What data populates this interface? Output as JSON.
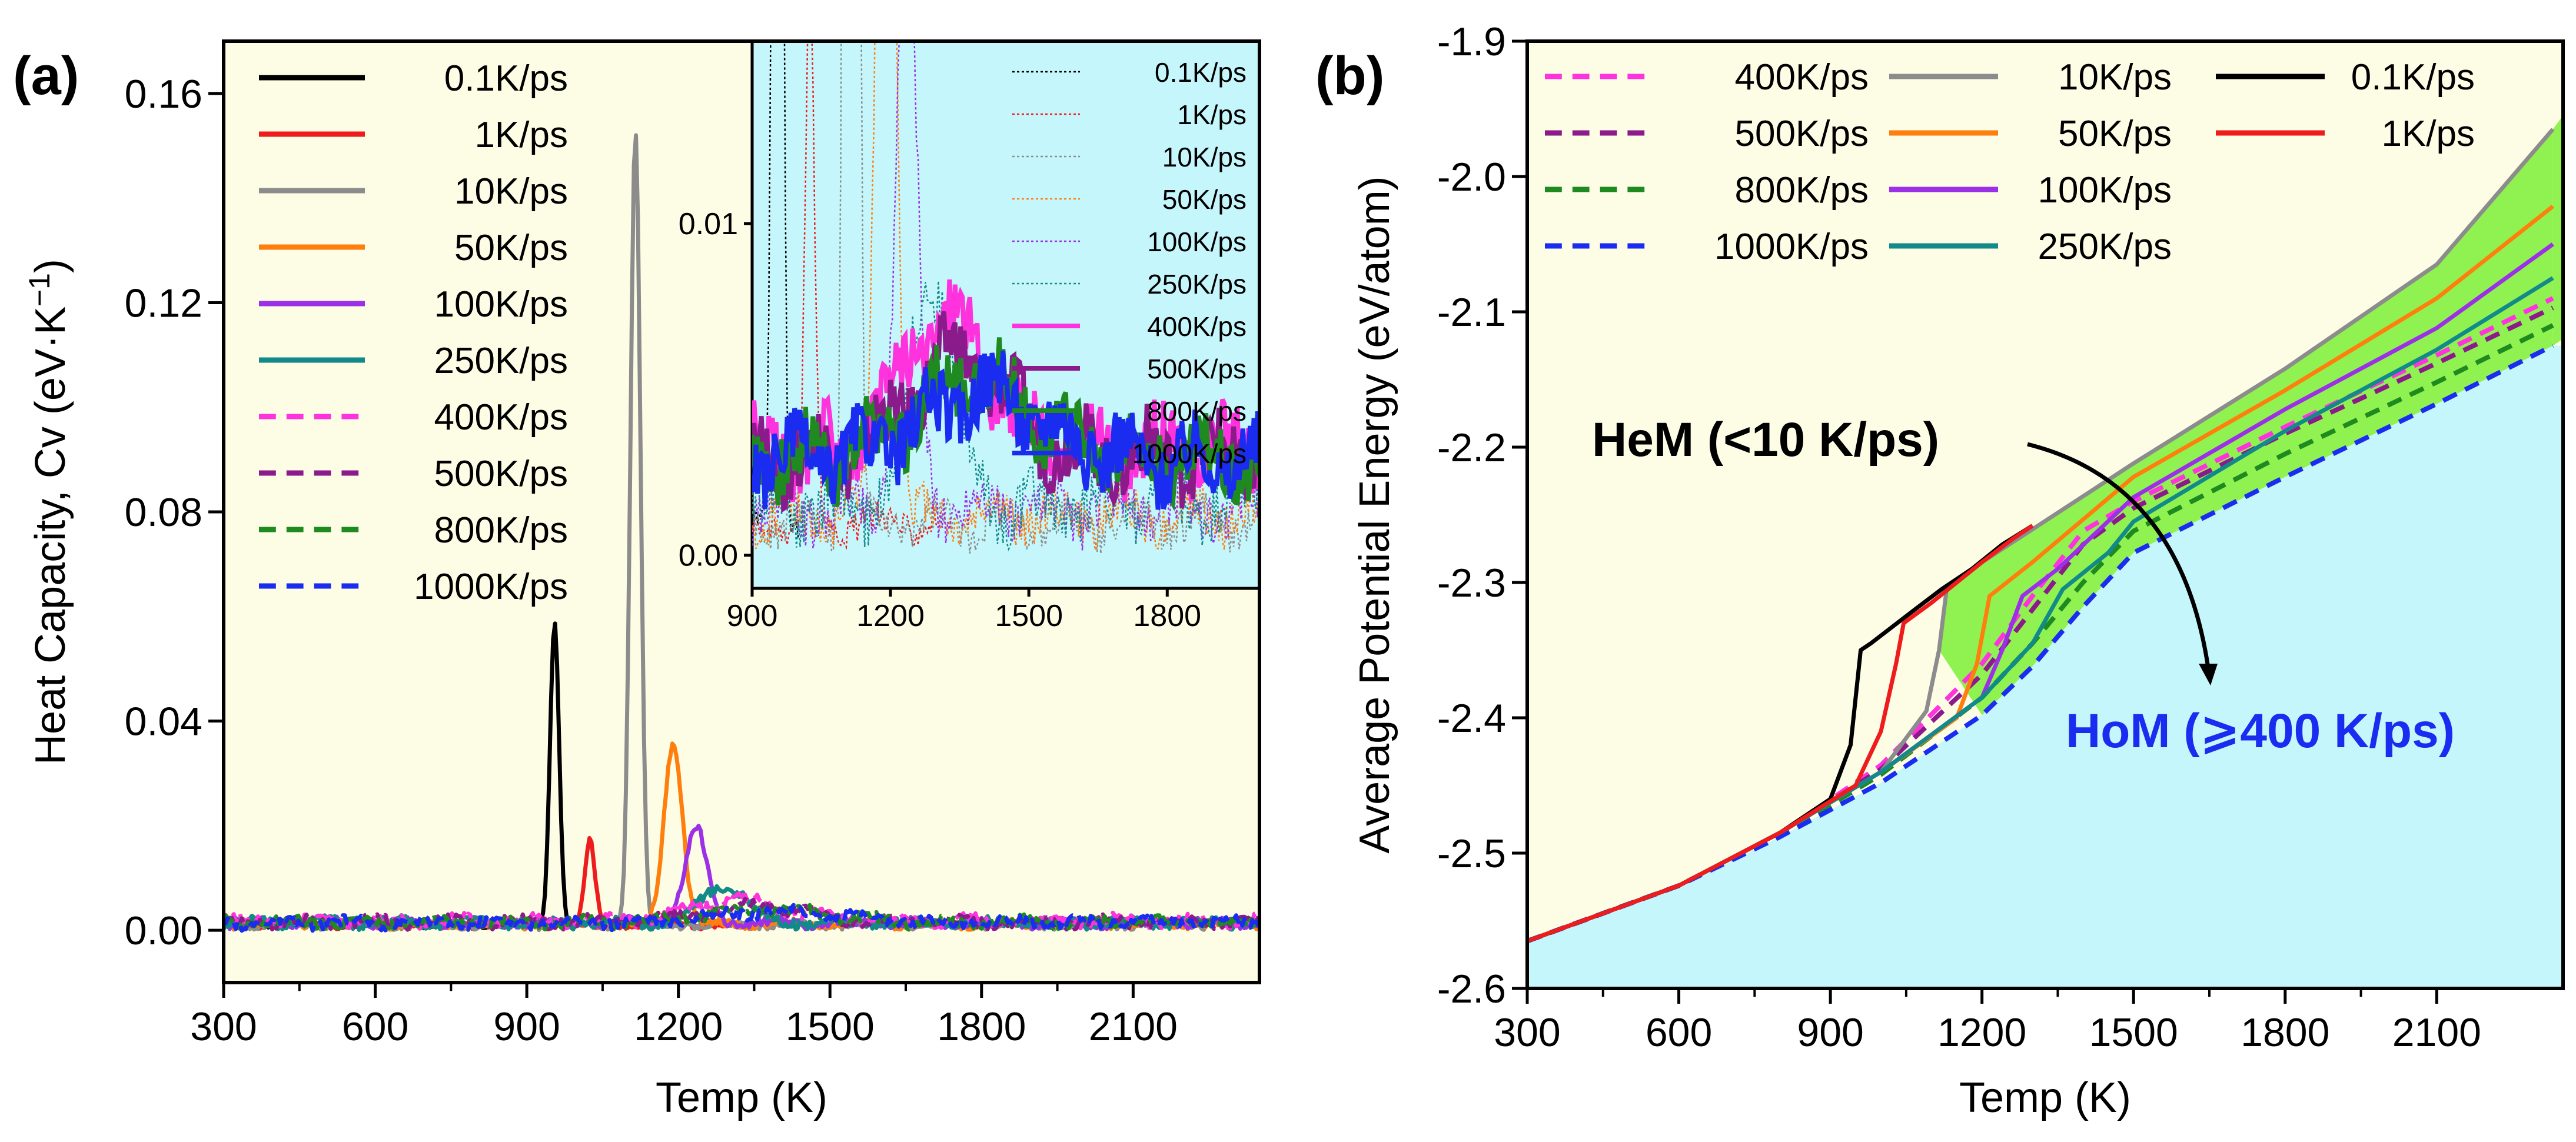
{
  "chart_data": [
    {
      "type": "line",
      "panel_label": "(a)",
      "xlabel": "Temp (K)",
      "ylabel": "Heat Capacity, Cv (eV·K",
      "ylabel_sup": "−1",
      "ylabel_close": ")",
      "xlim": [
        300,
        2350
      ],
      "ylim": [
        -0.01,
        0.17
      ],
      "xticks": [
        300,
        600,
        900,
        1200,
        1500,
        1800,
        2100
      ],
      "xtick_labels": [
        "300",
        "600",
        "900",
        "1200",
        "1500",
        "1800",
        "2100"
      ],
      "yticks": [
        0.0,
        0.04,
        0.08,
        0.12,
        0.16
      ],
      "ytick_labels": [
        "0.00",
        "0.04",
        "0.08",
        "0.12",
        "0.16"
      ],
      "background": "#fdfde6",
      "series": [
        {
          "name": "0.1K/ps",
          "color": "#000000",
          "dash": "solid",
          "baseline": 0.001,
          "noise": 0.0004,
          "x_end": 1000,
          "peaks": [
            [
              955,
              0.058,
              9
            ]
          ]
        },
        {
          "name": "1K/ps",
          "color": "#ee1c1c",
          "dash": "solid",
          "baseline": 0.001,
          "noise": 0.0005,
          "x_end": 1300,
          "peaks": [
            [
              1025,
              0.016,
              10
            ]
          ]
        },
        {
          "name": "10K/ps",
          "color": "#8c8c8c",
          "dash": "solid",
          "baseline": 0.001,
          "noise": 0.0006,
          "x_end": 2350,
          "peaks": [
            [
              1115,
              0.152,
              10
            ]
          ]
        },
        {
          "name": "50K/ps",
          "color": "#ff7f0e",
          "dash": "solid",
          "baseline": 0.0012,
          "noise": 0.0007,
          "x_end": 2350,
          "peaks": [
            [
              1190,
              0.035,
              18
            ]
          ]
        },
        {
          "name": "100K/ps",
          "color": "#9b30e6",
          "dash": "solid",
          "baseline": 0.0014,
          "noise": 0.0008,
          "x_end": 2350,
          "peaks": [
            [
              1235,
              0.018,
              22
            ]
          ]
        },
        {
          "name": "250K/ps",
          "color": "#138a8a",
          "dash": "solid",
          "baseline": 0.0015,
          "noise": 0.0009,
          "x_end": 2350,
          "peaks": [
            [
              1290,
              0.007,
              45
            ]
          ]
        },
        {
          "name": "400K/ps",
          "color": "#ff33dd",
          "dash": "dash",
          "baseline": 0.0018,
          "noise": 0.001,
          "x_end": 2350,
          "peaks": [
            [
              1320,
              0.004,
              90
            ]
          ]
        },
        {
          "name": "500K/ps",
          "color": "#8b1a8b",
          "dash": "dash",
          "baseline": 0.0016,
          "noise": 0.001,
          "x_end": 2350,
          "peaks": [
            [
              1350,
              0.003,
              100
            ]
          ]
        },
        {
          "name": "800K/ps",
          "color": "#1f8a1f",
          "dash": "dash",
          "baseline": 0.0015,
          "noise": 0.001,
          "x_end": 2350,
          "peaks": [
            [
              1380,
              0.0025,
              120
            ]
          ]
        },
        {
          "name": "1000K/ps",
          "color": "#1a2cf0",
          "dash": "dash",
          "baseline": 0.0015,
          "noise": 0.001,
          "x_end": 2350,
          "peaks": [
            [
              1400,
              0.002,
              130
            ]
          ]
        }
      ],
      "inset": {
        "xlim": [
          900,
          2000
        ],
        "ylim": [
          -0.001,
          0.0155
        ],
        "xticks": [
          900,
          1200,
          1500,
          1800
        ],
        "xtick_labels": [
          "900",
          "1200",
          "1500",
          "1800"
        ],
        "yticks": [
          0.0,
          0.01
        ],
        "ytick_labels": [
          "0.00",
          "0.01"
        ],
        "background": "#c5f6fb",
        "legend": [
          "0.1K/ps",
          "1K/ps",
          "10K/ps",
          "50K/ps",
          "100K/ps",
          "250K/ps",
          "400K/ps",
          "500K/ps",
          "800K/ps",
          "1000K/ps"
        ]
      }
    },
    {
      "type": "line",
      "panel_label": "(b)",
      "xlabel": "Temp (K)",
      "ylabel": "Average Potential Energy (eV/atom)",
      "xlim": [
        300,
        2350
      ],
      "ylim": [
        -2.6,
        -1.9
      ],
      "xticks": [
        300,
        600,
        900,
        1200,
        1500,
        1800,
        2100
      ],
      "xtick_labels": [
        "300",
        "600",
        "900",
        "1200",
        "1500",
        "1800",
        "2100"
      ],
      "yticks": [
        -2.6,
        -2.5,
        -2.4,
        -2.3,
        -2.2,
        -2.1,
        -2.0,
        -1.9
      ],
      "ytick_labels": [
        "-2.6",
        "-2.5",
        "-2.4",
        "-2.3",
        "-2.2",
        "-2.1",
        "-2.0",
        "-1.9"
      ],
      "region_colors": {
        "upper": "#fdfde6",
        "lower": "#c5f6fb",
        "band": "#90f250"
      },
      "series": [
        {
          "name": "400K/ps",
          "color": "#ff33dd",
          "dash": "dash",
          "points": [
            [
              300,
              -2.565
            ],
            [
              600,
              -2.524
            ],
            [
              800,
              -2.486
            ],
            [
              1000,
              -2.435
            ],
            [
              1200,
              -2.36
            ],
            [
              1300,
              -2.31
            ],
            [
              1400,
              -2.262
            ],
            [
              1500,
              -2.24
            ],
            [
              1800,
              -2.185
            ],
            [
              2100,
              -2.132
            ],
            [
              2330,
              -2.09
            ]
          ]
        },
        {
          "name": "500K/ps",
          "color": "#8b1a8b",
          "dash": "dash",
          "points": [
            [
              300,
              -2.565
            ],
            [
              600,
              -2.524
            ],
            [
              800,
              -2.486
            ],
            [
              1000,
              -2.438
            ],
            [
              1200,
              -2.368
            ],
            [
              1300,
              -2.32
            ],
            [
              1400,
              -2.272
            ],
            [
              1500,
              -2.245
            ],
            [
              1800,
              -2.19
            ],
            [
              2100,
              -2.138
            ],
            [
              2330,
              -2.097
            ]
          ]
        },
        {
          "name": "800K/ps",
          "color": "#1f8a1f",
          "dash": "dash",
          "points": [
            [
              300,
              -2.565
            ],
            [
              600,
              -2.524
            ],
            [
              800,
              -2.487
            ],
            [
              1000,
              -2.442
            ],
            [
              1200,
              -2.385
            ],
            [
              1300,
              -2.345
            ],
            [
              1400,
              -2.3
            ],
            [
              1500,
              -2.262
            ],
            [
              1800,
              -2.205
            ],
            [
              2100,
              -2.152
            ],
            [
              2330,
              -2.11
            ]
          ]
        },
        {
          "name": "1000K/ps",
          "color": "#1a2cf0",
          "dash": "dash",
          "points": [
            [
              300,
              -2.565
            ],
            [
              600,
              -2.524
            ],
            [
              800,
              -2.488
            ],
            [
              1000,
              -2.448
            ],
            [
              1200,
              -2.398
            ],
            [
              1300,
              -2.362
            ],
            [
              1400,
              -2.318
            ],
            [
              1500,
              -2.278
            ],
            [
              1800,
              -2.222
            ],
            [
              2100,
              -2.168
            ],
            [
              2330,
              -2.125
            ]
          ]
        },
        {
          "name": "10K/ps",
          "color": "#8c8c8c",
          "dash": "solid",
          "points": [
            [
              300,
              -2.565
            ],
            [
              600,
              -2.524
            ],
            [
              800,
              -2.485
            ],
            [
              1000,
              -2.44
            ],
            [
              1090,
              -2.395
            ],
            [
              1115,
              -2.35
            ],
            [
              1130,
              -2.305
            ],
            [
              1200,
              -2.285
            ],
            [
              1500,
              -2.212
            ],
            [
              1800,
              -2.142
            ],
            [
              2100,
              -2.065
            ],
            [
              2330,
              -1.965
            ]
          ]
        },
        {
          "name": "50K/ps",
          "color": "#ff7f0e",
          "dash": "solid",
          "points": [
            [
              300,
              -2.565
            ],
            [
              600,
              -2.524
            ],
            [
              800,
              -2.485
            ],
            [
              1000,
              -2.44
            ],
            [
              1150,
              -2.4
            ],
            [
              1190,
              -2.36
            ],
            [
              1215,
              -2.31
            ],
            [
              1300,
              -2.285
            ],
            [
              1500,
              -2.222
            ],
            [
              1800,
              -2.158
            ],
            [
              2100,
              -2.09
            ],
            [
              2330,
              -2.022
            ]
          ]
        },
        {
          "name": "100K/ps",
          "color": "#9b30e6",
          "dash": "solid",
          "points": [
            [
              300,
              -2.565
            ],
            [
              600,
              -2.524
            ],
            [
              800,
              -2.485
            ],
            [
              1000,
              -2.44
            ],
            [
              1200,
              -2.385
            ],
            [
              1240,
              -2.35
            ],
            [
              1280,
              -2.31
            ],
            [
              1350,
              -2.29
            ],
            [
              1500,
              -2.237
            ],
            [
              1800,
              -2.172
            ],
            [
              2100,
              -2.112
            ],
            [
              2330,
              -2.05
            ]
          ]
        },
        {
          "name": "250K/ps",
          "color": "#138a8a",
          "dash": "solid",
          "points": [
            [
              300,
              -2.565
            ],
            [
              600,
              -2.524
            ],
            [
              800,
              -2.485
            ],
            [
              1000,
              -2.44
            ],
            [
              1200,
              -2.385
            ],
            [
              1300,
              -2.345
            ],
            [
              1360,
              -2.305
            ],
            [
              1450,
              -2.278
            ],
            [
              1500,
              -2.255
            ],
            [
              1800,
              -2.188
            ],
            [
              2100,
              -2.128
            ],
            [
              2330,
              -2.075
            ]
          ]
        },
        {
          "name": "0.1K/ps",
          "color": "#000000",
          "dash": "solid",
          "points": [
            [
              300,
              -2.565
            ],
            [
              600,
              -2.524
            ],
            [
              800,
              -2.485
            ],
            [
              900,
              -2.46
            ],
            [
              940,
              -2.42
            ],
            [
              960,
              -2.35
            ],
            [
              980,
              -2.345
            ],
            [
              1060,
              -2.322
            ],
            [
              1120,
              -2.305
            ],
            [
              1180,
              -2.29
            ],
            [
              1240,
              -2.272
            ],
            [
              1300,
              -2.258
            ]
          ]
        },
        {
          "name": "1K/ps",
          "color": "#ee1c1c",
          "dash": "solid",
          "points": [
            [
              300,
              -2.565
            ],
            [
              600,
              -2.524
            ],
            [
              800,
              -2.485
            ],
            [
              950,
              -2.45
            ],
            [
              1000,
              -2.41
            ],
            [
              1030,
              -2.36
            ],
            [
              1045,
              -2.33
            ],
            [
              1100,
              -2.315
            ],
            [
              1200,
              -2.285
            ],
            [
              1260,
              -2.268
            ],
            [
              1300,
              -2.258
            ]
          ]
        }
      ],
      "legend": [
        "400K/ps",
        "500K/ps",
        "800K/ps",
        "1000K/ps",
        "10K/ps",
        "50K/ps",
        "100K/ps",
        "250K/ps",
        "0.1K/ps",
        "1K/ps"
      ],
      "annotations": [
        {
          "text": "HeM (<10 K/ps)",
          "color": "#000000"
        },
        {
          "text": "HoM (⩾400 K/ps)",
          "color": "#1a2cf0"
        }
      ]
    }
  ]
}
